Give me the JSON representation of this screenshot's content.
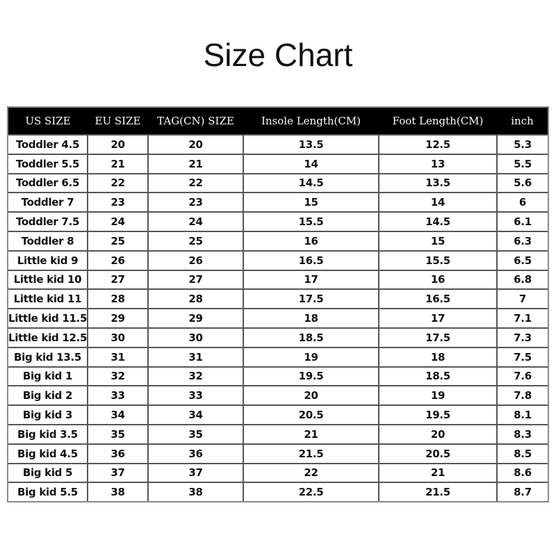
{
  "title": "Size Chart",
  "columns": [
    "US SIZE",
    "EU SIZE",
    "TAG(CN) SIZE",
    "Insole Length(CM)",
    "Foot Length(CM)",
    "inch"
  ],
  "rows": [
    [
      "Toddler 4.5",
      "20",
      "20",
      "13.5",
      "12.5",
      "5.3"
    ],
    [
      "Toddler 5.5",
      "21",
      "21",
      "14",
      "13",
      "5.5"
    ],
    [
      "Toddler 6.5",
      "22",
      "22",
      "14.5",
      "13.5",
      "5.6"
    ],
    [
      "Toddler 7",
      "23",
      "23",
      "15",
      "14",
      "6"
    ],
    [
      "Toddler 7.5",
      "24",
      "24",
      "15.5",
      "14.5",
      "6.1"
    ],
    [
      "Toddler 8",
      "25",
      "25",
      "16",
      "15",
      "6.3"
    ],
    [
      "Little kid 9",
      "26",
      "26",
      "16.5",
      "15.5",
      "6.5"
    ],
    [
      "Little kid 10",
      "27",
      "27",
      "17",
      "16",
      "6.8"
    ],
    [
      "Little kid 11",
      "28",
      "28",
      "17.5",
      "16.5",
      "7"
    ],
    [
      "Little kid 11.5",
      "29",
      "29",
      "18",
      "17",
      "7.1"
    ],
    [
      "Little kid 12.5",
      "30",
      "30",
      "18.5",
      "17.5",
      "7.3"
    ],
    [
      "Big kid 13.5",
      "31",
      "31",
      "19",
      "18",
      "7.5"
    ],
    [
      "Big kid 1",
      "32",
      "32",
      "19.5",
      "18.5",
      "7.6"
    ],
    [
      "Big kid 2",
      "33",
      "33",
      "20",
      "19",
      "7.8"
    ],
    [
      "Big kid 3",
      "34",
      "34",
      "20.5",
      "19.5",
      "8.1"
    ],
    [
      "Big kid 3.5",
      "35",
      "35",
      "21",
      "20",
      "8.3"
    ],
    [
      "Big kid 4.5",
      "36",
      "36",
      "21.5",
      "20.5",
      "8.5"
    ],
    [
      "Big kid 5",
      "37",
      "37",
      "22",
      "21",
      "8.6"
    ],
    [
      "Big kid 5.5",
      "38",
      "38",
      "22.5",
      "21.5",
      "8.7"
    ]
  ]
}
